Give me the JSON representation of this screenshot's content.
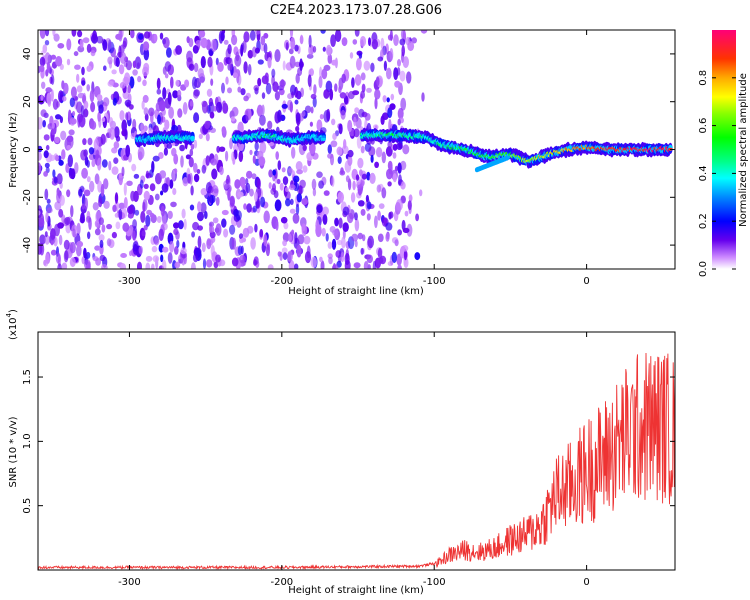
{
  "title": "C2E4.2023.173.07.28.G06",
  "chart_data": [
    {
      "type": "heatmap",
      "xlabel": "Height of straight line (km)",
      "ylabel": "Frequency (Hz)",
      "xlim": [
        -360,
        58
      ],
      "ylim": [
        -50,
        50
      ],
      "xticks": [
        -300,
        -200,
        -100,
        0
      ],
      "yticks": [
        -40,
        -20,
        0,
        20,
        40
      ],
      "xtick_labels": [
        "-300",
        "-200",
        "-100",
        "0"
      ],
      "ytick_labels": [
        "-40",
        "-20",
        "0",
        "20",
        "40"
      ],
      "colorbar": {
        "label": "Normalized spectral amplitude",
        "range": [
          0,
          1
        ],
        "ticks": [
          0.0,
          0.2,
          0.4,
          0.6,
          0.8
        ],
        "tick_labels": [
          "0.0",
          "0.2",
          "0.4",
          "0.6",
          "0.8"
        ]
      },
      "noise_region_km": [
        -360,
        -115
      ],
      "signal_trace": [
        {
          "x": -295,
          "y": 4,
          "amp": 0.3
        },
        {
          "x": -280,
          "y": 5,
          "amp": 0.4
        },
        {
          "x": -265,
          "y": 5,
          "amp": 0.35
        },
        {
          "x": -225,
          "y": 5,
          "amp": 0.4
        },
        {
          "x": -210,
          "y": 6,
          "amp": 0.45
        },
        {
          "x": -195,
          "y": 4,
          "amp": 0.4
        },
        {
          "x": -180,
          "y": 5,
          "amp": 0.3
        },
        {
          "x": -140,
          "y": 6,
          "amp": 0.45
        },
        {
          "x": -120,
          "y": 6,
          "amp": 0.5
        },
        {
          "x": -105,
          "y": 5,
          "amp": 0.4
        },
        {
          "x": -95,
          "y": 2,
          "amp": 0.45
        },
        {
          "x": -80,
          "y": 0,
          "amp": 0.5
        },
        {
          "x": -65,
          "y": -3,
          "amp": 0.55
        },
        {
          "x": -50,
          "y": -2,
          "amp": 0.6
        },
        {
          "x": -38,
          "y": -5,
          "amp": 0.7
        },
        {
          "x": -25,
          "y": -2,
          "amp": 0.7
        },
        {
          "x": -12,
          "y": 0,
          "amp": 0.8
        },
        {
          "x": 0,
          "y": 1,
          "amp": 0.85
        },
        {
          "x": 15,
          "y": 0,
          "amp": 0.9
        },
        {
          "x": 35,
          "y": 0,
          "amp": 0.95
        },
        {
          "x": 55,
          "y": 0,
          "amp": 0.95
        }
      ]
    },
    {
      "type": "line",
      "xlabel": "Height of straight line (km)",
      "ylabel": "SNR (10 * v/v)",
      "multiplier_label": "(x10",
      "multiplier_exp": "4",
      "multiplier_close": ")",
      "xlim": [
        -360,
        58
      ],
      "ylim": [
        0,
        1.85
      ],
      "xticks": [
        -300,
        -200,
        -100,
        0
      ],
      "yticks": [
        0.5,
        1.0,
        1.5
      ],
      "xtick_labels": [
        "-300",
        "-200",
        "-100",
        "0"
      ],
      "ytick_labels": [
        "0.5",
        "1.0",
        "1.5"
      ],
      "series": [
        {
          "color": "#ee3333",
          "envelope": [
            {
              "x": -360,
              "y": 0.02
            },
            {
              "x": -200,
              "y": 0.02
            },
            {
              "x": -110,
              "y": 0.03
            },
            {
              "x": -100,
              "y": 0.05
            },
            {
              "x": -90,
              "y": 0.15
            },
            {
              "x": -80,
              "y": 0.2
            },
            {
              "x": -70,
              "y": 0.18
            },
            {
              "x": -60,
              "y": 0.22
            },
            {
              "x": -50,
              "y": 0.3
            },
            {
              "x": -40,
              "y": 0.35
            },
            {
              "x": -30,
              "y": 0.45
            },
            {
              "x": -20,
              "y": 0.75
            },
            {
              "x": -10,
              "y": 0.85
            },
            {
              "x": 0,
              "y": 1.0
            },
            {
              "x": 10,
              "y": 1.1
            },
            {
              "x": 20,
              "y": 1.25
            },
            {
              "x": 30,
              "y": 1.4
            },
            {
              "x": 40,
              "y": 1.45
            },
            {
              "x": 50,
              "y": 1.45
            },
            {
              "x": 58,
              "y": 1.4
            }
          ]
        }
      ]
    }
  ]
}
